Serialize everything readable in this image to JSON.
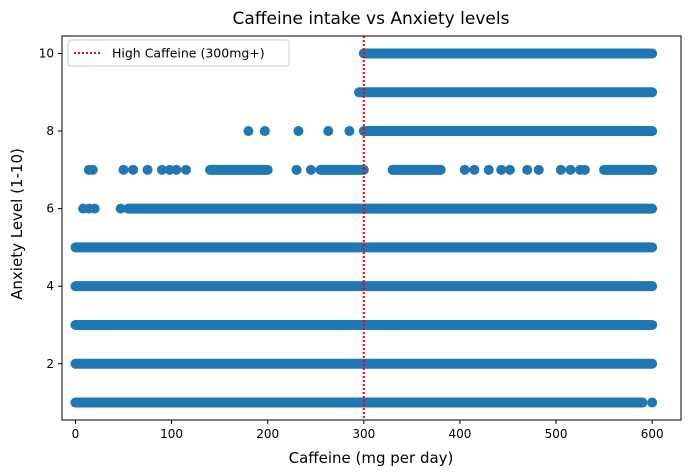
{
  "chart_data": {
    "type": "scatter",
    "title": "Caffeine intake vs Anxiety levels",
    "xlabel": "Caffeine (mg per day)",
    "ylabel": "Anxiety Level (1-10)",
    "xlim": [
      -14,
      630
    ],
    "ylim": [
      0.55,
      10.45
    ],
    "xticks": [
      0,
      100,
      200,
      300,
      400,
      500,
      600
    ],
    "yticks": [
      2,
      4,
      6,
      8,
      10
    ],
    "grid": false,
    "legend": {
      "position": "top-left",
      "entries": [
        "High Caffeine (300mg+)"
      ]
    },
    "series": [
      {
        "color": "#1f77b4",
        "marker": "circle",
        "levels": [
          {
            "y": 1,
            "segments": [
              [
                0,
                590
              ]
            ],
            "points": [
              600
            ]
          },
          {
            "y": 2,
            "segments": [
              [
                0,
                600
              ]
            ],
            "points": []
          },
          {
            "y": 3,
            "segments": [
              [
                0,
                600
              ]
            ],
            "points": []
          },
          {
            "y": 4,
            "segments": [
              [
                0,
                600
              ]
            ],
            "points": []
          },
          {
            "y": 5,
            "segments": [
              [
                0,
                600
              ]
            ],
            "points": []
          },
          {
            "y": 6,
            "segments": [
              [
                55,
                600
              ]
            ],
            "points": [
              8,
              14,
              20,
              47
            ]
          },
          {
            "y": 7,
            "segments": [
              [
                140,
                200
              ],
              [
                255,
                300
              ],
              [
                330,
                380
              ],
              [
                550,
                600
              ]
            ],
            "points": [
              14,
              18,
              50,
              60,
              75,
              90,
              98,
              105,
              115,
              230,
              245,
              405,
              415,
              430,
              443,
              452,
              470,
              482,
              505,
              515,
              525,
              530
            ]
          },
          {
            "y": 8,
            "segments": [
              [
                300,
                600
              ]
            ],
            "points": [
              180,
              197,
              232,
              263,
              285
            ]
          },
          {
            "y": 9,
            "segments": [
              [
                295,
                600
              ]
            ],
            "points": []
          },
          {
            "y": 10,
            "segments": [
              [
                300,
                600
              ]
            ],
            "points": []
          }
        ]
      }
    ],
    "reference_line": {
      "x": 300,
      "color": "#ff0000",
      "style": "dotted",
      "name": "High Caffeine (300mg+)"
    }
  }
}
